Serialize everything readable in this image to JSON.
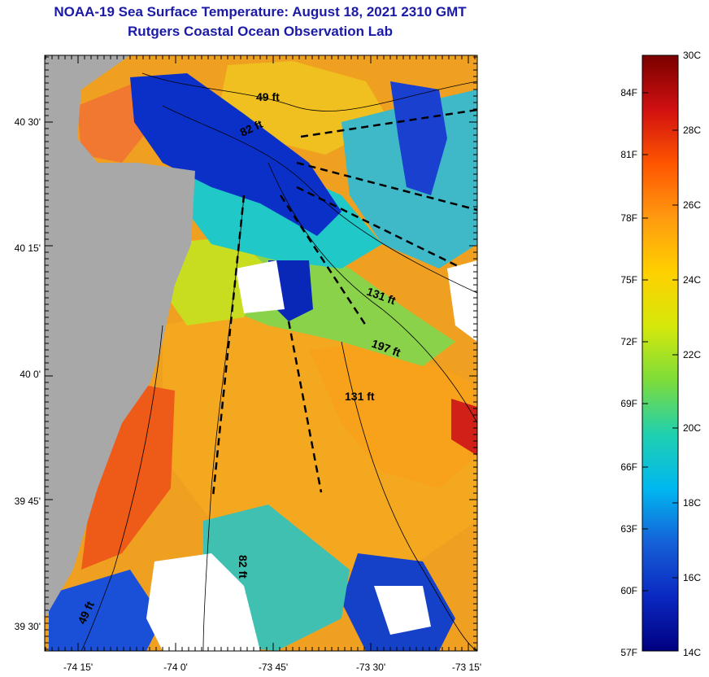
{
  "header": {
    "title": "NOAA-19 Sea Surface Temperature:  August 18, 2021 2310 GMT",
    "subtitle": "Rutgers Coastal Ocean Observation Lab"
  },
  "axes": {
    "y_ticks": [
      "40 30'",
      "40 15'",
      "40 0'",
      "39 45'",
      "39 30'"
    ],
    "x_ticks": [
      "-74 15'",
      "-74 0'",
      "-73 45'",
      "-73 30'",
      "-73 15'"
    ]
  },
  "depth_labels": [
    "49 ft",
    "82 ft",
    "131 ft",
    "197 ft",
    "131 ft",
    "82 ft",
    "49 ft"
  ],
  "colorbar": {
    "left_labels": [
      "84F",
      "81F",
      "78F",
      "75F",
      "72F",
      "69F",
      "66F",
      "63F",
      "60F",
      "57F"
    ],
    "right_labels": [
      "30C",
      "28C",
      "26C",
      "24C",
      "22C",
      "20C",
      "18C",
      "16C",
      "14C"
    ],
    "colors": [
      "#7a0000",
      "#d01010",
      "#ff5500",
      "#ff9a10",
      "#ffd000",
      "#d6e80a",
      "#7ddc3a",
      "#20d0b0",
      "#00b8f0",
      "#1560d8",
      "#0a28c0",
      "#000080"
    ]
  },
  "land_color": "#a8a8a8"
}
